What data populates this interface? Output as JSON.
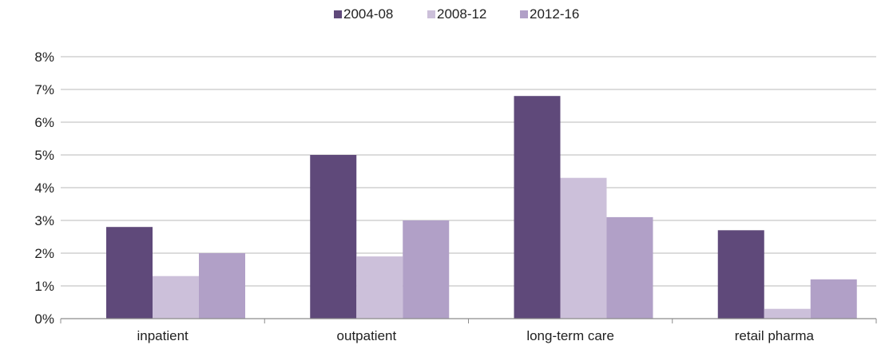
{
  "chart_data": {
    "type": "bar",
    "categories": [
      "inpatient",
      "outpatient",
      "long-term care",
      "retail pharma"
    ],
    "series": [
      {
        "name": "2004-08",
        "values": [
          2.8,
          5.0,
          6.8,
          2.7
        ]
      },
      {
        "name": "2008-12",
        "values": [
          1.3,
          1.9,
          4.3,
          0.3
        ]
      },
      {
        "name": "2012-16",
        "values": [
          2.0,
          3.0,
          3.1,
          1.2
        ]
      }
    ],
    "title": "",
    "xlabel": "",
    "ylabel": "",
    "ylim": [
      0,
      8
    ],
    "yticks": [
      0,
      1,
      2,
      3,
      4,
      5,
      6,
      7,
      8
    ],
    "ytick_labels": [
      "0%",
      "1%",
      "2%",
      "3%",
      "4%",
      "5%",
      "6%",
      "7%",
      "8%"
    ],
    "grid": true,
    "legend_position": "top-center",
    "colors": [
      "#5f497a",
      "#ccc0da",
      "#b1a0c7"
    ]
  }
}
